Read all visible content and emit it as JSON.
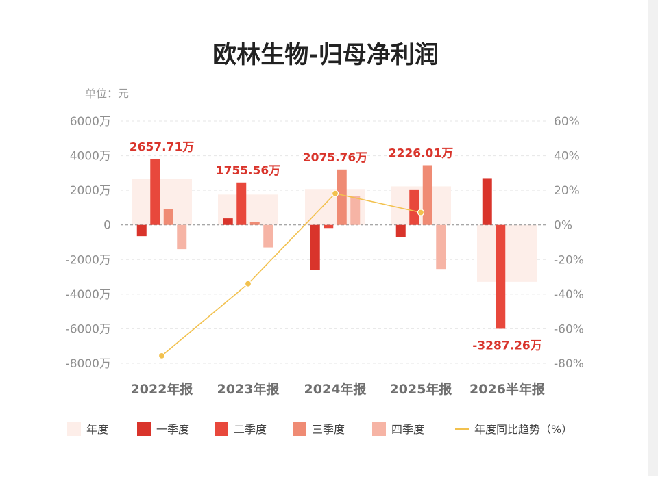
{
  "chart_data": {
    "type": "bar",
    "title": "欧林生物-归母净利润",
    "unit_label": "单位：元",
    "categories": [
      "2022年报",
      "2023年报",
      "2024年报",
      "2025年报",
      "2026半年报"
    ],
    "y_left": {
      "min": -8000,
      "max": 6000,
      "step": 2000,
      "tick_labels": [
        "6000万",
        "4000万",
        "2000万",
        "0",
        "-2000万",
        "-4000万",
        "-6000万",
        "-8000万"
      ]
    },
    "y_right": {
      "min": -80,
      "max": 60,
      "step": 20,
      "tick_labels": [
        "60%",
        "40%",
        "20%",
        "0%",
        "-20%",
        "-40%",
        "-60%",
        "-80%"
      ]
    },
    "series": [
      {
        "name": "年度",
        "kind": "band",
        "color": "#fdeee9",
        "values": [
          2657.71,
          1755.56,
          2075.76,
          2226.01,
          -3287.26
        ]
      },
      {
        "name": "一季度",
        "kind": "bar",
        "color": "#d9342b",
        "values": [
          -650,
          380,
          -2600,
          -700,
          2700
        ]
      },
      {
        "name": "二季度",
        "kind": "bar",
        "color": "#e8483c",
        "values": [
          3800,
          2450,
          -180,
          2050,
          -6000
        ]
      },
      {
        "name": "三季度",
        "kind": "bar",
        "color": "#ef8b74",
        "values": [
          900,
          150,
          3200,
          3450,
          null
        ]
      },
      {
        "name": "四季度",
        "kind": "bar",
        "color": "#f6b4a5",
        "values": [
          -1400,
          -1300,
          1650,
          -2550,
          null
        ]
      },
      {
        "name": "年度同比趋势（%）",
        "kind": "line",
        "color": "#f2c14e",
        "axis": "right",
        "values": [
          -75.6,
          -34,
          18.2,
          7.2,
          null
        ]
      }
    ],
    "annual_labels": [
      "2657.71万",
      "1755.56万",
      "2075.76万",
      "2226.01万",
      "-3287.26万"
    ],
    "grid": true,
    "legend_position": "bottom"
  }
}
